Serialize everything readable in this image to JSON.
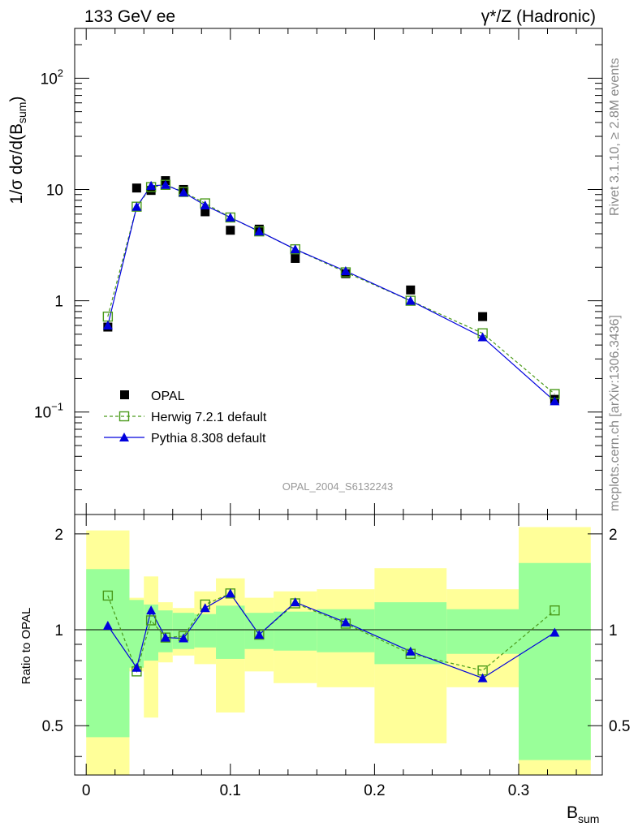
{
  "header": {
    "left": "133 GeV ee",
    "right": "γ*/Z (Hadronic)"
  },
  "side_labels": {
    "rivet": "Rivet 3.1.10, ≥ 2.8M events",
    "mcplots": "mcplots.cern.ch [arXiv:1306.3436]"
  },
  "watermark": "OPAL_2004_S6132243",
  "colors": {
    "data": "#000000",
    "herwig": "#4a9a1a",
    "pythia": "#0000dd",
    "band_inner": "#99ff99",
    "band_outer": "#ffff99"
  },
  "chart_data": [
    {
      "type": "scatter",
      "panel": "main",
      "ylabel_main": "1/σ dσ/d(B",
      "ylabel_sub": "sum",
      "ylabel_end": ")",
      "yscale": "log",
      "ylim": [
        0.012,
        280
      ],
      "xlim": [
        -0.008,
        0.358
      ],
      "yticks": [
        {
          "v": 0.1,
          "base": "10",
          "exp": "−1"
        },
        {
          "v": 1,
          "base": "1",
          "exp": ""
        },
        {
          "v": 10,
          "base": "10",
          "exp": ""
        },
        {
          "v": 100,
          "base": "10",
          "exp": "2"
        }
      ],
      "legend_position": "middle-left",
      "series": [
        {
          "name": "OPAL",
          "x": [
            0.015,
            0.035,
            0.045,
            0.055,
            0.0675,
            0.0825,
            0.1,
            0.12,
            0.145,
            0.18,
            0.225,
            0.275,
            0.325
          ],
          "y": [
            0.58,
            10.3,
            9.8,
            12.0,
            10.0,
            6.3,
            4.3,
            4.4,
            2.4,
            1.75,
            1.25,
            0.72,
            0.13
          ]
        },
        {
          "name": "Herwig 7.2.1 default",
          "x": [
            0.015,
            0.035,
            0.045,
            0.055,
            0.0675,
            0.0825,
            0.1,
            0.12,
            0.145,
            0.18,
            0.225,
            0.275,
            0.325
          ],
          "y": [
            0.72,
            7.0,
            10.5,
            11.0,
            9.5,
            7.5,
            5.6,
            4.2,
            2.9,
            1.8,
            1.0,
            0.51,
            0.145
          ]
        },
        {
          "name": "Pythia 8.308 default",
          "x": [
            0.015,
            0.035,
            0.045,
            0.055,
            0.0675,
            0.0825,
            0.1,
            0.12,
            0.145,
            0.18,
            0.225,
            0.275,
            0.325
          ],
          "y": [
            0.6,
            7.0,
            10.8,
            11.0,
            9.4,
            7.2,
            5.6,
            4.2,
            2.9,
            1.85,
            1.0,
            0.47,
            0.125
          ]
        }
      ]
    },
    {
      "type": "line",
      "panel": "ratio",
      "ylabel": "Ratio to OPAL",
      "xlabel_main": "B",
      "xlabel_sub": "sum",
      "yscale": "log",
      "ylim": [
        0.35,
        2.3
      ],
      "xlim": [
        -0.008,
        0.358
      ],
      "yticks": [
        0.5,
        1,
        2
      ],
      "xticks": [
        0,
        0.1,
        0.2,
        0.3
      ],
      "xtick_labels": [
        "0",
        "0.1",
        "0.2",
        "0.3"
      ],
      "ytick_labels": [
        "0.5",
        "1",
        "2"
      ],
      "bands": [
        {
          "x0": 0.0,
          "x1": 0.03,
          "inner": [
            0.46,
            1.55
          ],
          "outer": [
            0.3,
            2.05
          ]
        },
        {
          "x0": 0.03,
          "x1": 0.04,
          "inner": [
            0.76,
            1.24
          ],
          "outer": [
            0.74,
            1.26
          ]
        },
        {
          "x0": 0.04,
          "x1": 0.05,
          "inner": [
            0.8,
            1.2
          ],
          "outer": [
            0.53,
            1.47
          ]
        },
        {
          "x0": 0.05,
          "x1": 0.06,
          "inner": [
            0.85,
            1.15
          ],
          "outer": [
            0.79,
            1.22
          ]
        },
        {
          "x0": 0.06,
          "x1": 0.075,
          "inner": [
            0.87,
            1.13
          ],
          "outer": [
            0.83,
            1.17
          ]
        },
        {
          "x0": 0.075,
          "x1": 0.09,
          "inner": [
            0.88,
            1.12
          ],
          "outer": [
            0.78,
            1.32
          ]
        },
        {
          "x0": 0.09,
          "x1": 0.11,
          "inner": [
            0.81,
            1.19
          ],
          "outer": [
            0.55,
            1.45
          ]
        },
        {
          "x0": 0.11,
          "x1": 0.13,
          "inner": [
            0.87,
            1.13
          ],
          "outer": [
            0.74,
            1.26
          ]
        },
        {
          "x0": 0.13,
          "x1": 0.16,
          "inner": [
            0.86,
            1.14
          ],
          "outer": [
            0.68,
            1.32
          ]
        },
        {
          "x0": 0.16,
          "x1": 0.2,
          "inner": [
            0.85,
            1.16
          ],
          "outer": [
            0.66,
            1.34
          ]
        },
        {
          "x0": 0.2,
          "x1": 0.25,
          "inner": [
            0.78,
            1.22
          ],
          "outer": [
            0.44,
            1.56
          ]
        },
        {
          "x0": 0.25,
          "x1": 0.3,
          "inner": [
            0.84,
            1.16
          ],
          "outer": [
            0.66,
            1.34
          ]
        },
        {
          "x0": 0.3,
          "x1": 0.35,
          "inner": [
            0.39,
            1.62
          ],
          "outer": [
            0.31,
            2.1
          ]
        }
      ],
      "series": [
        {
          "name": "Herwig 7.2.1 default",
          "x": [
            0.015,
            0.035,
            0.045,
            0.055,
            0.0675,
            0.0825,
            0.1,
            0.12,
            0.145,
            0.18,
            0.225,
            0.275,
            0.325
          ],
          "y": [
            1.28,
            0.74,
            1.07,
            0.945,
            0.955,
            1.2,
            1.3,
            0.965,
            1.21,
            1.045,
            0.84,
            0.745,
            1.15
          ]
        },
        {
          "name": "Pythia 8.308 default",
          "x": [
            0.015,
            0.035,
            0.045,
            0.055,
            0.0675,
            0.0825,
            0.1,
            0.12,
            0.145,
            0.18,
            0.225,
            0.275,
            0.325
          ],
          "y": [
            1.03,
            0.76,
            1.15,
            0.945,
            0.94,
            1.17,
            1.3,
            0.965,
            1.22,
            1.055,
            0.855,
            0.705,
            0.98
          ]
        }
      ]
    }
  ]
}
